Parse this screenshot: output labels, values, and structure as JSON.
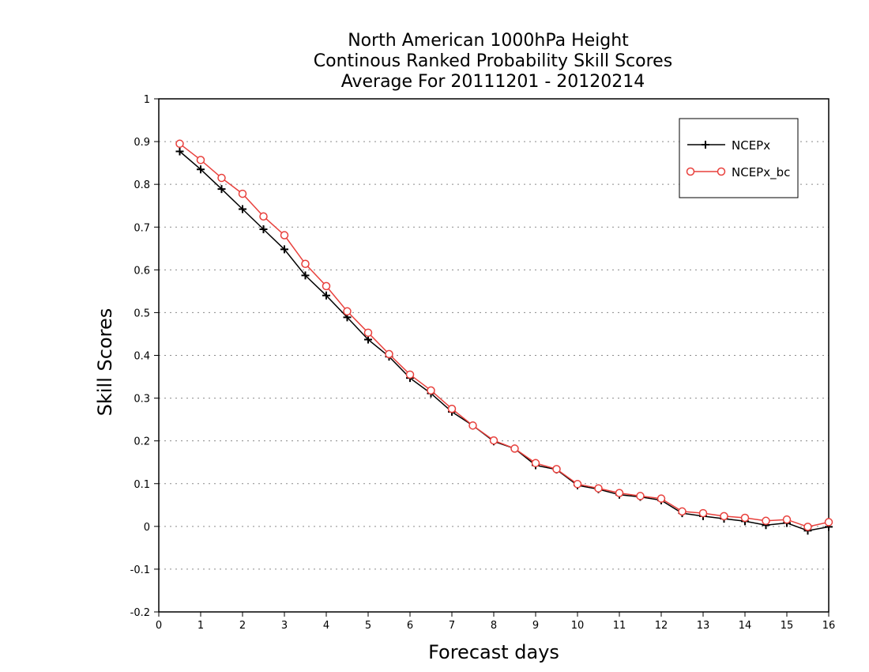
{
  "chart_data": {
    "type": "line",
    "title": [
      "North American 1000hPa Height",
      "Continous Ranked Probability Skill Scores",
      "Average For 20111201 - 20120214"
    ],
    "xlabel": "Forecast days",
    "ylabel": "Skill Scores",
    "xlim": [
      0,
      16
    ],
    "ylim": [
      -0.2,
      1
    ],
    "x_ticks": [
      0,
      1,
      2,
      3,
      4,
      5,
      6,
      7,
      8,
      9,
      10,
      11,
      12,
      13,
      14,
      15,
      16
    ],
    "y_ticks": [
      -0.2,
      -0.1,
      0,
      0.1,
      0.2,
      0.3,
      0.4,
      0.5,
      0.6,
      0.7,
      0.8,
      0.9,
      1
    ],
    "y_tick_labels": [
      "-0.2",
      "-0.1",
      "0",
      "0.1",
      "0.2",
      "0.3",
      "0.4",
      "0.5",
      "0.6",
      "0.7",
      "0.8",
      "0.9",
      "1"
    ],
    "grid": "horizontal dotted",
    "legend_position": "top-right",
    "x": [
      0.5,
      1,
      1.5,
      2,
      2.5,
      3,
      3.5,
      4,
      4.5,
      5,
      5.5,
      6,
      6.5,
      7,
      7.5,
      8,
      8.5,
      9,
      9.5,
      10,
      10.5,
      11,
      11.5,
      12,
      12.5,
      13,
      13.5,
      14,
      14.5,
      15,
      15.5,
      16
    ],
    "series": [
      {
        "name": "NCEPx",
        "color": "#000000",
        "marker": "plus",
        "values": [
          0.877,
          0.835,
          0.789,
          0.742,
          0.695,
          0.648,
          0.587,
          0.54,
          0.489,
          0.437,
          0.397,
          0.347,
          0.311,
          0.268,
          0.236,
          0.199,
          0.182,
          0.143,
          0.133,
          0.096,
          0.087,
          0.074,
          0.069,
          0.061,
          0.031,
          0.024,
          0.018,
          0.012,
          0.003,
          0.008,
          -0.01,
          -0.001
        ]
      },
      {
        "name": "NCEPx_bc",
        "color": "#e8403c",
        "marker": "circle",
        "values": [
          0.895,
          0.857,
          0.815,
          0.778,
          0.725,
          0.681,
          0.614,
          0.562,
          0.503,
          0.453,
          0.403,
          0.355,
          0.318,
          0.275,
          0.236,
          0.201,
          0.182,
          0.148,
          0.134,
          0.099,
          0.089,
          0.078,
          0.071,
          0.065,
          0.035,
          0.031,
          0.024,
          0.02,
          0.013,
          0.016,
          -0.001,
          0.01
        ]
      }
    ]
  }
}
